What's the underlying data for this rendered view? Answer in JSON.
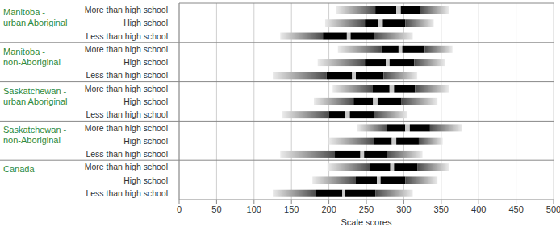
{
  "chart_data": {
    "type": "range_bar",
    "orientation": "horizontal",
    "xlabel": "Scale scores",
    "xlim": [
      0,
      500
    ],
    "xticks": [
      0,
      50,
      100,
      150,
      200,
      250,
      300,
      350,
      400,
      450,
      500
    ],
    "grid": true,
    "groups": [
      {
        "name": "Manitoba - urban Aboriginal",
        "categories": [
          "More than high school",
          "High school",
          "Less than high school"
        ],
        "low": [
          210,
          195,
          135
        ],
        "q1": [
          262,
          248,
          192
        ],
        "ci_low": [
          290,
          266,
          224
        ],
        "ci_high": [
          296,
          272,
          229
        ],
        "q3": [
          322,
          302,
          260
        ],
        "high": [
          360,
          340,
          312
        ]
      },
      {
        "name": "Manitoba - non-Aboriginal",
        "categories": [
          "More than high school",
          "High school",
          "Less than high school"
        ],
        "low": [
          212,
          185,
          125
        ],
        "q1": [
          270,
          248,
          197
        ],
        "ci_low": [
          293,
          276,
          231
        ],
        "ci_high": [
          298,
          281,
          236
        ],
        "q3": [
          328,
          314,
          273
        ],
        "high": [
          365,
          355,
          318
        ]
      },
      {
        "name": "Saskatchewan - urban Aboriginal",
        "categories": [
          "More than high school",
          "High school",
          "Less than high school"
        ],
        "low": [
          205,
          180,
          138
        ],
        "q1": [
          258,
          233,
          200
        ],
        "ci_low": [
          281,
          259,
          222
        ],
        "ci_high": [
          287,
          265,
          228
        ],
        "q3": [
          315,
          297,
          260
        ],
        "high": [
          360,
          345,
          305
        ]
      },
      {
        "name": "Saskatchewan - non-Aboriginal",
        "categories": [
          "More than high school",
          "High school",
          "Less than high school"
        ],
        "low": [
          238,
          200,
          135
        ],
        "q1": [
          278,
          260,
          208
        ],
        "ci_low": [
          302,
          284,
          242
        ],
        "ci_high": [
          308,
          290,
          247
        ],
        "q3": [
          335,
          320,
          277
        ],
        "high": [
          378,
          352,
          325
        ]
      },
      {
        "name": "Canada",
        "categories": [
          "More than high school",
          "High school",
          "Less than high school"
        ],
        "low": [
          198,
          178,
          125
        ],
        "q1": [
          255,
          236,
          183
        ],
        "ci_low": [
          282,
          264,
          218
        ],
        "ci_high": [
          287,
          269,
          222
        ],
        "q3": [
          318,
          302,
          262
        ],
        "high": [
          360,
          345,
          312
        ]
      }
    ]
  }
}
